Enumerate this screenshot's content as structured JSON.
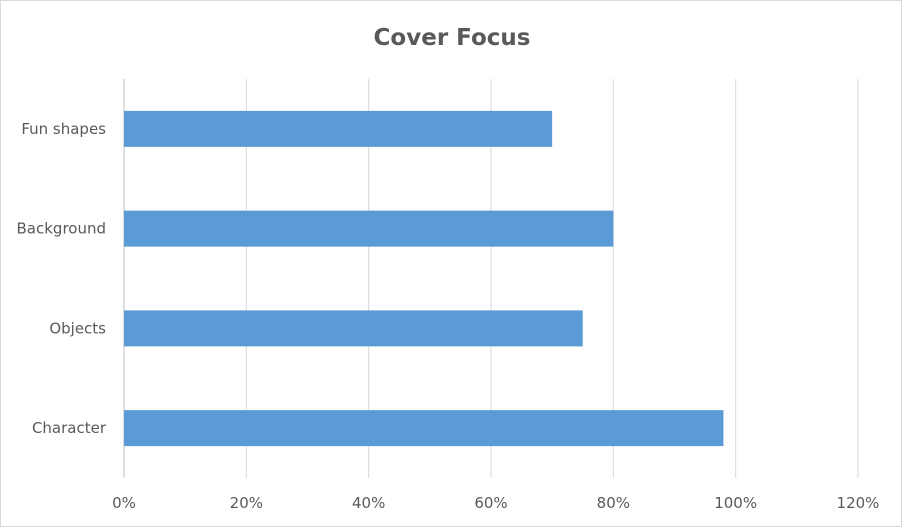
{
  "chart_data": {
    "type": "bar",
    "orientation": "horizontal",
    "title": "Cover Focus",
    "categories": [
      "Character",
      "Objects",
      "Background",
      "Fun shapes"
    ],
    "values": [
      0.98,
      0.75,
      0.8,
      0.7
    ],
    "xlim": [
      0,
      1.2
    ],
    "x_ticks": [
      "0%",
      "20%",
      "40%",
      "60%",
      "80%",
      "100%",
      "120%"
    ],
    "xlabel": "",
    "ylabel": "",
    "grid": true,
    "legend": "none",
    "bar_color": "#5b9bd5"
  }
}
